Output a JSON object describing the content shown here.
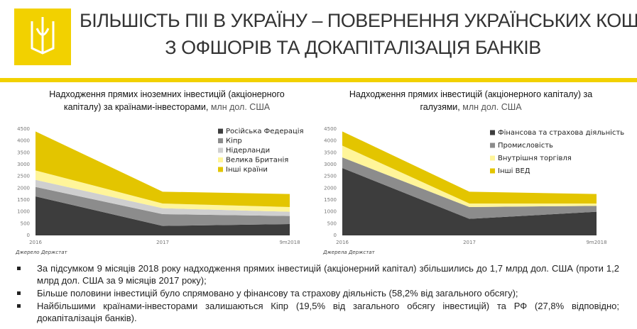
{
  "header": {
    "title": [
      "БІЛЬШІСТЬ ПІІ В УКРАЇНУ – ПОВЕРНЕННЯ УКРАЇНСЬКИХ КОШТІВ",
      "З ОФШОРІВ ТА ДОКАПІТАЛІЗАЦІЯ БАНКІВ"
    ]
  },
  "chart_data": [
    {
      "type": "area",
      "stacked": true,
      "title": "Надходження прямих іноземних інвестицій (акціонерного капіталу) за країнами-інвесторами,",
      "unit": "млн дол. США",
      "categories": [
        "2016",
        "2017",
        "9m2018"
      ],
      "series": [
        {
          "name": "Російська Федерація",
          "color": "#3d3d3d",
          "values": [
            1650,
            400,
            480
          ]
        },
        {
          "name": "Кіпр",
          "color": "#8c8c8c",
          "values": [
            400,
            500,
            340
          ]
        },
        {
          "name": "Нідерланди",
          "color": "#cfcfcf",
          "values": [
            300,
            250,
            180
          ]
        },
        {
          "name": "Велика Британія",
          "color": "#fff59a",
          "values": [
            400,
            200,
            200
          ]
        },
        {
          "name": "Інші країни",
          "color": "#e3c500",
          "values": [
            1650,
            500,
            550
          ]
        }
      ],
      "ylim": [
        0,
        4500
      ],
      "yticks": [
        0,
        500,
        1000,
        1500,
        2000,
        2500,
        3000,
        3500,
        4000,
        4500
      ],
      "grid": false,
      "source": "Джерело Держстат"
    },
    {
      "type": "area",
      "stacked": true,
      "title": "Надходження прямих інвестицій (акціонерного капіталу) за галузями,",
      "unit": "млн дол. США",
      "categories": [
        "2016",
        "2017",
        "9m2018"
      ],
      "series": [
        {
          "name": "Фінансова та страхова діяльність",
          "color": "#3d3d3d",
          "values": [
            2850,
            700,
            1000
          ]
        },
        {
          "name": "Промисловість",
          "color": "#8c8c8c",
          "values": [
            450,
            500,
            250
          ]
        },
        {
          "name": "Внутрішня торгівля",
          "color": "#fff59a",
          "values": [
            500,
            150,
            100
          ]
        },
        {
          "name": "Інші ВЕД",
          "color": "#e3c500",
          "values": [
            600,
            500,
            400
          ]
        }
      ],
      "ylim": [
        0,
        4500
      ],
      "yticks": [
        0,
        500,
        1000,
        1500,
        2000,
        2500,
        3000,
        3500,
        4000,
        4500
      ],
      "grid": false,
      "source": "Джерела Держстат"
    }
  ],
  "bullets": [
    "За підсумком 9 місяців 2018 року надходження прямих інвестицій (акціонерний капітал) збільшились до 1,7 млрд дол. США (проти 1,2 млрд дол. США за 9 місяців 2017 року);",
    "Більше половини інвестицій було спрямовано у фінансову та страхову діяльність (58,2% від загального обсягу);",
    "Найбільшими країнами-інвесторами залишаються Кіпр (19,5% від загального обсягу інвестицій) та РФ (27,8% відповідно; докапіталізація банків)."
  ]
}
